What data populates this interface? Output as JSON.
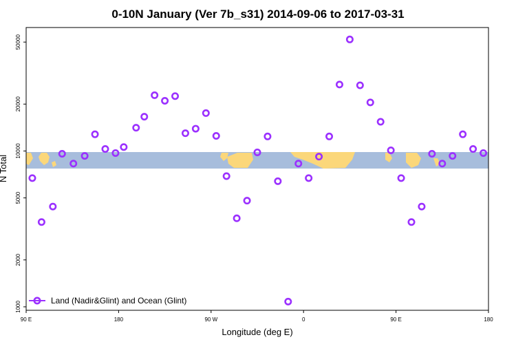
{
  "chart_data": {
    "type": "scatter",
    "title": "0-10N January (Ver 7b_s31)   2014-09-06 to 2017-03-31",
    "xlabel": "Longitude (deg E)",
    "ylabel": "N Total",
    "yscale": "log",
    "xlim": [
      90,
      540
    ],
    "ylim": [
      950,
      62000
    ],
    "x_ticks": [
      {
        "value": 90,
        "label": "90 E"
      },
      {
        "value": 180,
        "label": "180"
      },
      {
        "value": 270,
        "label": "90 W"
      },
      {
        "value": 360,
        "label": "0"
      },
      {
        "value": 450,
        "label": "90 E"
      },
      {
        "value": 540,
        "label": "180"
      }
    ],
    "y_ticks": [
      {
        "value": 1000,
        "label": "1000"
      },
      {
        "value": 2000,
        "label": "2000"
      },
      {
        "value": 5000,
        "label": "5000"
      },
      {
        "value": 10000,
        "label": "10000"
      },
      {
        "value": 20000,
        "label": "20000"
      },
      {
        "value": 50000,
        "label": "50000"
      }
    ],
    "map_band": {
      "lat_range": "0-10N",
      "ocean_color": "#a7bddc",
      "land_color": "#fbd77a"
    },
    "series": [
      {
        "name": "Land (Nadir&Glint) and Ocean (Glint)",
        "color": "#9b30ff",
        "x": [
          96,
          105,
          116,
          125,
          136,
          147,
          157,
          167,
          177,
          185,
          197,
          205,
          215,
          225,
          235,
          245,
          255,
          265,
          275,
          285,
          295,
          305,
          315,
          325,
          335,
          345,
          355,
          365,
          375,
          385,
          395,
          405,
          415,
          425,
          435,
          445,
          455,
          465,
          475,
          485,
          495,
          505,
          515,
          525,
          535
        ],
        "values": [
          6700,
          3500,
          4400,
          9600,
          8300,
          9300,
          12800,
          10300,
          9700,
          10600,
          14100,
          16600,
          22800,
          21000,
          22500,
          13000,
          13900,
          17500,
          12500,
          6900,
          3700,
          4800,
          9800,
          12400,
          6400,
          1080,
          8300,
          6700,
          9200,
          12400,
          26700,
          52000,
          26400,
          20500,
          15400,
          10100,
          6700,
          3500,
          4400,
          9600,
          8300,
          9300,
          12800,
          10300,
          9700
        ]
      }
    ],
    "legend": {
      "position": "bottom-left"
    }
  }
}
